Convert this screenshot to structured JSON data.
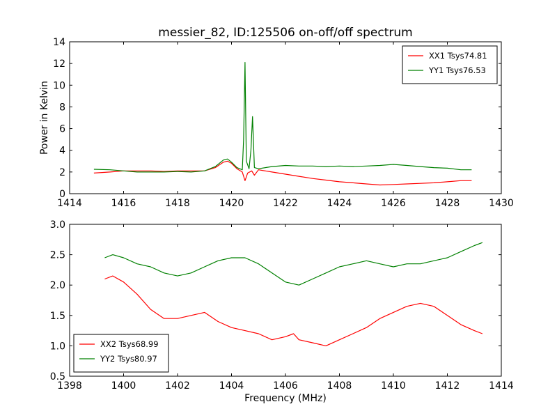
{
  "chart_data": [
    {
      "type": "line",
      "title": "messier_82, ID:125506 on-off/off spectrum",
      "xlabel": "",
      "ylabel": "Power in Kelvin",
      "xlim": [
        1414,
        1430
      ],
      "ylim": [
        0,
        14
      ],
      "xticks": [
        "1414",
        "1416",
        "1418",
        "1420",
        "1422",
        "1424",
        "1426",
        "1428",
        "1430"
      ],
      "yticks": [
        "0",
        "2",
        "4",
        "6",
        "8",
        "10",
        "12",
        "14"
      ],
      "legend_position": "top-right",
      "series": [
        {
          "name": "XX1 Tsys74.81",
          "color": "#ff0000",
          "x": [
            1414.9,
            1415.5,
            1416.0,
            1416.5,
            1417.0,
            1417.5,
            1418.0,
            1418.5,
            1419.0,
            1419.4,
            1419.7,
            1419.85,
            1420.0,
            1420.2,
            1420.4,
            1420.5,
            1420.6,
            1420.75,
            1420.85,
            1421.0,
            1421.5,
            1422.0,
            1422.5,
            1423.0,
            1423.5,
            1424.0,
            1424.5,
            1425.0,
            1425.5,
            1426.0,
            1426.5,
            1427.0,
            1427.5,
            1428.0,
            1428.5,
            1428.9
          ],
          "y": [
            1.9,
            2.0,
            2.1,
            2.1,
            2.1,
            2.05,
            2.1,
            2.1,
            2.1,
            2.4,
            2.9,
            3.0,
            2.8,
            2.3,
            2.0,
            1.2,
            1.9,
            2.1,
            1.7,
            2.2,
            2.0,
            1.8,
            1.6,
            1.4,
            1.25,
            1.1,
            1.0,
            0.9,
            0.8,
            0.85,
            0.9,
            0.95,
            1.0,
            1.1,
            1.2,
            1.2
          ]
        },
        {
          "name": "YY1 Tsys76.53",
          "color": "#008000",
          "x": [
            1414.9,
            1415.5,
            1416.0,
            1416.5,
            1417.0,
            1417.5,
            1418.0,
            1418.5,
            1419.0,
            1419.4,
            1419.7,
            1419.85,
            1420.0,
            1420.2,
            1420.4,
            1420.45,
            1420.5,
            1420.55,
            1420.65,
            1420.72,
            1420.78,
            1420.85,
            1421.0,
            1421.5,
            1422.0,
            1422.5,
            1423.0,
            1423.5,
            1424.0,
            1424.5,
            1425.0,
            1425.5,
            1426.0,
            1426.5,
            1427.0,
            1427.5,
            1428.0,
            1428.5,
            1428.9
          ],
          "y": [
            2.25,
            2.2,
            2.1,
            2.0,
            2.0,
            2.0,
            2.05,
            2.0,
            2.1,
            2.5,
            3.1,
            3.2,
            2.9,
            2.4,
            2.2,
            5.0,
            12.1,
            3.0,
            2.3,
            4.0,
            7.1,
            2.4,
            2.3,
            2.5,
            2.6,
            2.55,
            2.55,
            2.5,
            2.55,
            2.5,
            2.55,
            2.6,
            2.7,
            2.6,
            2.5,
            2.4,
            2.35,
            2.2,
            2.2
          ]
        }
      ]
    },
    {
      "type": "line",
      "title": "",
      "xlabel": "Frequency (MHz)",
      "ylabel": "",
      "xlim": [
        1398,
        1414
      ],
      "ylim": [
        0.5,
        3.0
      ],
      "xticks": [
        "1398",
        "1400",
        "1402",
        "1404",
        "1406",
        "1408",
        "1410",
        "1412",
        "1414"
      ],
      "yticks": [
        "0.5",
        "1.0",
        "1.5",
        "2.0",
        "2.5",
        "3.0"
      ],
      "legend_position": "bottom-left",
      "series": [
        {
          "name": "XX2 Tsys68.99",
          "color": "#ff0000",
          "x": [
            1399.3,
            1399.6,
            1400.0,
            1400.5,
            1401.0,
            1401.5,
            1402.0,
            1402.5,
            1403.0,
            1403.5,
            1404.0,
            1404.5,
            1405.0,
            1405.5,
            1406.0,
            1406.3,
            1406.5,
            1407.0,
            1407.5,
            1408.0,
            1408.5,
            1409.0,
            1409.5,
            1410.0,
            1410.5,
            1411.0,
            1411.5,
            1412.0,
            1412.5,
            1413.0,
            1413.3
          ],
          "y": [
            2.1,
            2.15,
            2.05,
            1.85,
            1.6,
            1.45,
            1.45,
            1.5,
            1.55,
            1.4,
            1.3,
            1.25,
            1.2,
            1.1,
            1.15,
            1.2,
            1.1,
            1.05,
            1.0,
            1.1,
            1.2,
            1.3,
            1.45,
            1.55,
            1.65,
            1.7,
            1.65,
            1.5,
            1.35,
            1.25,
            1.2
          ]
        },
        {
          "name": "YY2 Tsys80.97",
          "color": "#008000",
          "x": [
            1399.3,
            1399.6,
            1400.0,
            1400.5,
            1401.0,
            1401.5,
            1402.0,
            1402.5,
            1403.0,
            1403.5,
            1404.0,
            1404.5,
            1405.0,
            1405.5,
            1406.0,
            1406.5,
            1407.0,
            1407.5,
            1408.0,
            1408.5,
            1409.0,
            1409.5,
            1410.0,
            1410.5,
            1411.0,
            1411.5,
            1412.0,
            1412.5,
            1413.0,
            1413.3
          ],
          "y": [
            2.45,
            2.5,
            2.45,
            2.35,
            2.3,
            2.2,
            2.15,
            2.2,
            2.3,
            2.4,
            2.45,
            2.45,
            2.35,
            2.2,
            2.05,
            2.0,
            2.1,
            2.2,
            2.3,
            2.35,
            2.4,
            2.35,
            2.3,
            2.35,
            2.35,
            2.4,
            2.45,
            2.55,
            2.65,
            2.7
          ]
        }
      ]
    }
  ]
}
